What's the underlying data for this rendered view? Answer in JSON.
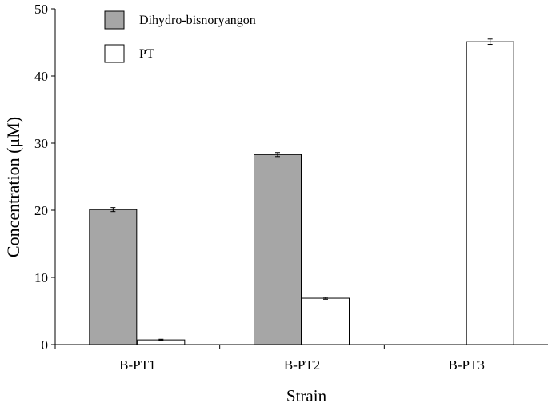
{
  "chart_data": {
    "type": "bar",
    "title": "",
    "xlabel": "Strain",
    "ylabel": "Concentration  (μM)",
    "categories": [
      "B-PT1",
      "B-PT2",
      "B-PT3"
    ],
    "ylim": [
      0,
      50
    ],
    "yticks": [
      0,
      10,
      20,
      30,
      40,
      50
    ],
    "grid": false,
    "legend_position": "top-left",
    "series": [
      {
        "name": "Dihydro-bisnoryangon",
        "values": [
          20.1,
          28.3,
          0
        ],
        "errors": [
          0.3,
          0.3,
          0
        ],
        "color": "#a6a6a6"
      },
      {
        "name": "PT",
        "values": [
          0.7,
          6.9,
          45.1
        ],
        "errors": [
          0.1,
          0.15,
          0.4
        ],
        "color": "#ffffff"
      }
    ]
  }
}
